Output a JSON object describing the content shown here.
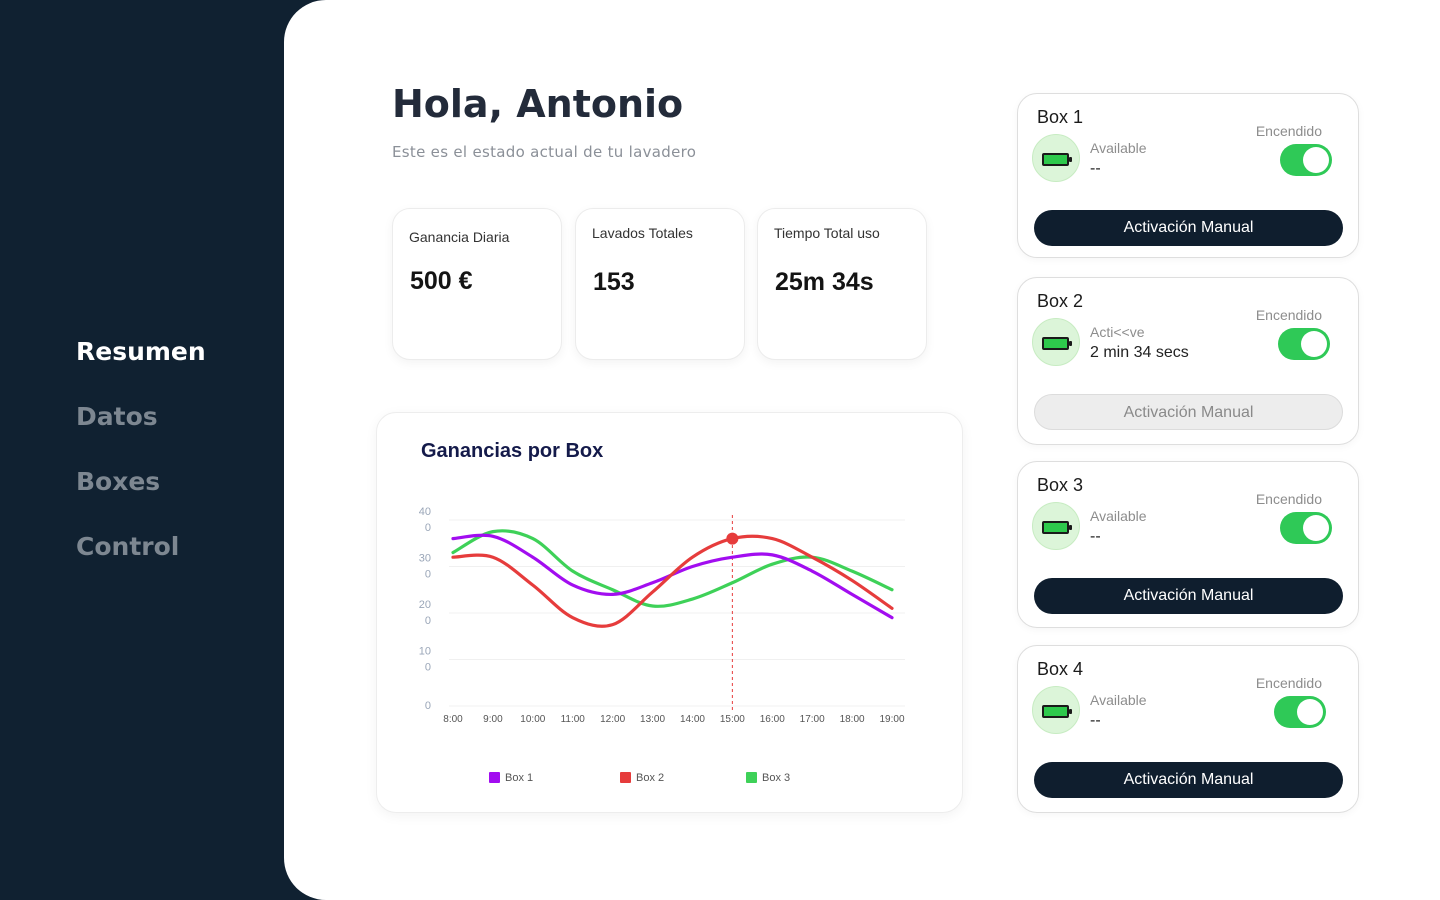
{
  "sidebar": {
    "items": [
      {
        "label": "Resumen",
        "active": true
      },
      {
        "label": "Datos",
        "active": false
      },
      {
        "label": "Boxes",
        "active": false
      },
      {
        "label": "Control",
        "active": false
      }
    ]
  },
  "header": {
    "greeting_prefix": "Hola, ",
    "user_name": "Antonio",
    "subtitle": "Este es el estado actual de tu lavadero"
  },
  "stats": [
    {
      "label": "Ganancia Diaria",
      "value": "500 €"
    },
    {
      "label": "Lavados Totales",
      "value": "153"
    },
    {
      "label": "Tiempo Total uso",
      "value": "25m 34s"
    }
  ],
  "chart_data": {
    "type": "line",
    "title": "Ganancias por Box",
    "x": [
      "8:00",
      "9:00",
      "10:00",
      "11:00",
      "12:00",
      "13:00",
      "14:00",
      "15:00",
      "16:00",
      "17:00",
      "18:00",
      "19:00"
    ],
    "ytick_labels": [
      "40\n0",
      "30\n0",
      "20\n0",
      "10\n0",
      "0"
    ],
    "ylim": [
      0,
      400
    ],
    "series": [
      {
        "name": "Box 1",
        "color": "#a20df0",
        "values": [
          360,
          365,
          320,
          260,
          240,
          265,
          300,
          320,
          325,
          290,
          240,
          190
        ]
      },
      {
        "name": "Box 2",
        "color": "#e63c3c",
        "values": [
          320,
          320,
          260,
          190,
          175,
          245,
          320,
          360,
          360,
          320,
          270,
          210
        ]
      },
      {
        "name": "Box 3",
        "color": "#3ed158",
        "values": [
          330,
          375,
          360,
          290,
          250,
          215,
          230,
          265,
          305,
          320,
          290,
          250
        ]
      }
    ],
    "highlight": {
      "x": "15:00",
      "series": "Box 2",
      "value": 360
    },
    "legend_position": "bottom",
    "grid": true
  },
  "boxes": [
    {
      "title": "Box 1",
      "status_label": "Available",
      "status_value": "--",
      "switch_label": "Encendido",
      "on": true,
      "button_label": "Activación Manual",
      "button_enabled": true
    },
    {
      "title": "Box 2",
      "status_label": "Acti<<ve",
      "status_value": "2 min 34 secs",
      "switch_label": "Encendido",
      "on": true,
      "button_label": "Activación Manual",
      "button_enabled": false
    },
    {
      "title": "Box 3",
      "status_label": "Available",
      "status_value": "--",
      "switch_label": "Encendido",
      "on": true,
      "button_label": "Activación Manual",
      "button_enabled": true
    },
    {
      "title": "Box 4",
      "status_label": "Available",
      "status_value": "--",
      "switch_label": "Encendido",
      "on": true,
      "button_label": "Activación Manual",
      "button_enabled": true
    }
  ],
  "colors": {
    "sidebar_bg": "#102131",
    "toggle_on": "#2fc957",
    "battery_bg": "#dcf5d9",
    "button_dark": "#0f1e2e"
  },
  "icons": {
    "battery": "battery-full-icon"
  }
}
